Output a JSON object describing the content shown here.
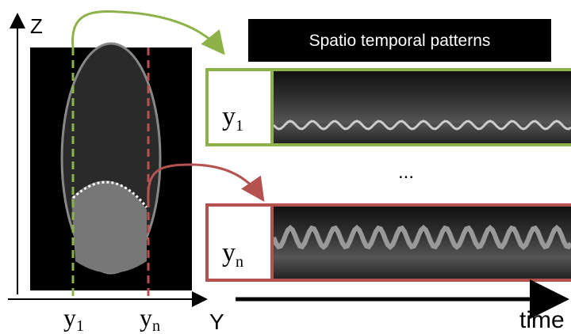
{
  "axes": {
    "z": "Z",
    "y": "Y",
    "time": "time"
  },
  "markers": [
    {
      "base": "y",
      "sub": "1"
    },
    {
      "base": "y",
      "sub": "n"
    }
  ],
  "panel": {
    "title": "Spatio temporal patterns",
    "ellipsis": "...",
    "rows": [
      {
        "base": "y",
        "sub": "1"
      },
      {
        "base": "y",
        "sub": "n"
      }
    ]
  }
}
